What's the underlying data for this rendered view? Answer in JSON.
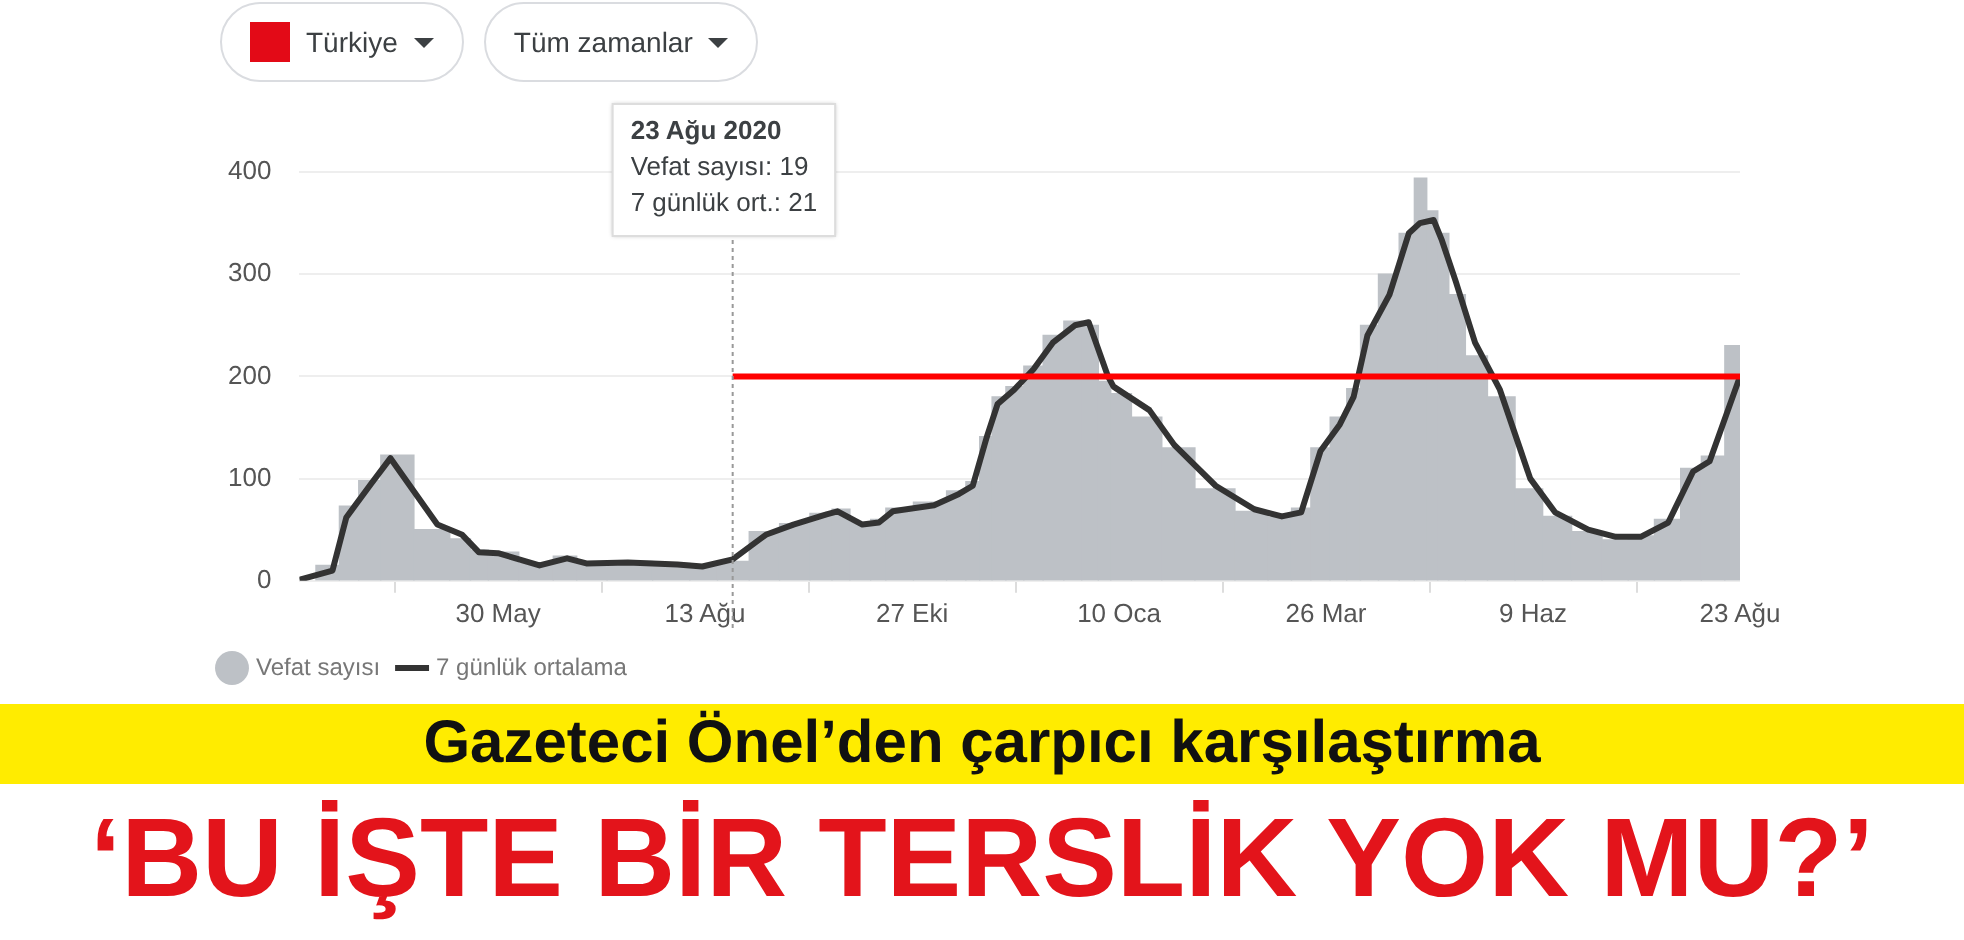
{
  "chart_data": {
    "type": "bar",
    "title": "‘BU İŞTE BİR TERSLİK YOK MU?’",
    "subtitle": "Gazeteci Önel’den çarpıcı karşılaştırma",
    "x": [
      "2020-03-19",
      "2020-03-31",
      "2020-04-05",
      "2020-04-14",
      "2020-04-21",
      "2020-05-08",
      "2020-05-17",
      "2020-05-23",
      "2020-05-30",
      "2020-06-14",
      "2020-06-24",
      "2020-07-01",
      "2020-07-16",
      "2020-08-03",
      "2020-08-12",
      "2020-08-23",
      "2020-09-04",
      "2020-09-14",
      "2020-09-26",
      "2020-09-30",
      "2020-10-09",
      "2020-10-15",
      "2020-10-20",
      "2020-11-04",
      "2020-11-13",
      "2020-11-18",
      "2020-11-23",
      "2020-11-27",
      "2020-12-03",
      "2020-12-10",
      "2020-12-17",
      "2020-12-25",
      "2020-12-30",
      "2021-01-06",
      "2021-01-08",
      "2021-01-21",
      "2021-01-30",
      "2021-02-14",
      "2021-02-28",
      "2021-03-10",
      "2021-03-17",
      "2021-03-24",
      "2021-03-31",
      "2021-04-05",
      "2021-04-10",
      "2021-04-18",
      "2021-04-25",
      "2021-04-29",
      "2021-05-04",
      "2021-05-07",
      "2021-05-12",
      "2021-05-19",
      "2021-05-28",
      "2021-06-08",
      "2021-06-17",
      "2021-06-29",
      "2021-07-09",
      "2021-07-18",
      "2021-07-28",
      "2021-08-06",
      "2021-08-12",
      "2021-08-23"
    ],
    "series": [
      {
        "name": "Vefat sayısı",
        "color": "#bdc1c6",
        "values": [
          null,
          15,
          73,
          98,
          123,
          50,
          41,
          30,
          28,
          17,
          24,
          18,
          19,
          17,
          15,
          19,
          48,
          56,
          66,
          70,
          57,
          60,
          71,
          77,
          88,
          97,
          141,
          180,
          190,
          210,
          240,
          254,
          250,
          195,
          183,
          160,
          130,
          90,
          68,
          62,
          71,
          130,
          160,
          188,
          250,
          300,
          340,
          394,
          362,
          340,
          280,
          220,
          180,
          90,
          63,
          48,
          40,
          44,
          60,
          110,
          122,
          230
        ]
      },
      {
        "name": "7 günlük ortalama",
        "type": "line",
        "color": "#333333",
        "values": [
          1,
          10,
          62,
          95,
          120,
          55,
          45,
          28,
          27,
          15,
          22,
          17,
          18,
          16,
          14,
          21,
          45,
          55,
          65,
          68,
          55,
          57,
          68,
          74,
          85,
          93,
          140,
          173,
          187,
          207,
          233,
          250,
          253,
          200,
          190,
          167,
          133,
          93,
          70,
          63,
          67,
          127,
          153,
          180,
          240,
          280,
          340,
          350,
          353,
          333,
          293,
          233,
          187,
          100,
          67,
          50,
          43,
          43,
          57,
          107,
          117,
          200
        ]
      },
      {
        "type": "line",
        "color": "#ff0000",
        "x": [
          "2020-08-23",
          "2021-08-23"
        ],
        "values": [
          200,
          200
        ]
      }
    ],
    "xlim": [
      "2020-03-19",
      "2021-08-23"
    ],
    "xticks": [
      {
        "value": "2020-05-30",
        "label": "30 May"
      },
      {
        "value": "2020-08-13",
        "label": "13 Ağu"
      },
      {
        "value": "2020-10-27",
        "label": "27 Eki"
      },
      {
        "value": "2021-01-10",
        "label": "10 Oca"
      },
      {
        "value": "2021-03-26",
        "label": "26 Mar"
      },
      {
        "value": "2021-06-09",
        "label": "9 Haz"
      },
      {
        "value": "2021-08-23",
        "label": "23 Ağu"
      }
    ],
    "ylim": [
      0,
      400
    ],
    "yticks": [
      0,
      100,
      200,
      300,
      400
    ],
    "grid": "y",
    "legend": "bottom left",
    "ref_lines": [
      {
        "axis": "x",
        "value": "2020-08-23",
        "color": "#999999",
        "line_style": "dotted"
      }
    ],
    "annotations": [
      "Türkiye",
      "Tüm zamanlar",
      "23 Ağu 2020",
      "Vefat sayısı: 19",
      "7 günlük ort.: 21"
    ]
  }
}
